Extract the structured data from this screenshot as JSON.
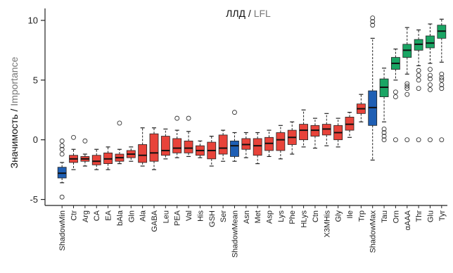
{
  "chart_data": {
    "type": "boxplot",
    "title_main": "ЛЛД",
    "title_sep": " / ",
    "title_alt": "LFL",
    "ylabel_main": "Значимость",
    "ylabel_sep": " / ",
    "ylabel_alt": "Importance",
    "ylim": [
      -5.5,
      11
    ],
    "yticks": [
      -5,
      0,
      5,
      10
    ],
    "grid": false,
    "colors": {
      "rejected": "#e8433a",
      "shadow": "#1f5fb4",
      "confirmed": "#1aa564",
      "tentative": "#1aa564",
      "title_alt": "#777777",
      "ylabel_alt": "#777777"
    },
    "boxes": [
      {
        "name": "ShadowMin",
        "group": "shadow",
        "min": -3.6,
        "q1": -3.2,
        "median": -2.8,
        "q3": -2.3,
        "max": -1.9,
        "outliers": [
          -0.1,
          -0.5,
          -0.8,
          -1.2,
          -4.8
        ]
      },
      {
        "name": "Ctr",
        "group": "rejected",
        "min": -2.5,
        "q1": -1.9,
        "median": -1.6,
        "q3": -1.3,
        "max": -0.8,
        "outliers": [
          0.2
        ]
      },
      {
        "name": "Arg",
        "group": "rejected",
        "min": -2.2,
        "q1": -1.8,
        "median": -1.6,
        "q3": -1.4,
        "max": -1.2,
        "outliers": [
          -0.1
        ]
      },
      {
        "name": "CA",
        "group": "rejected",
        "min": -2.5,
        "q1": -2.1,
        "median": -1.8,
        "q3": -1.3,
        "max": -0.8,
        "outliers": []
      },
      {
        "name": "EA",
        "group": "rejected",
        "min": -2.5,
        "q1": -2.0,
        "median": -1.6,
        "q3": -1.1,
        "max": -0.6,
        "outliers": []
      },
      {
        "name": "bAla",
        "group": "rejected",
        "min": -2.0,
        "q1": -1.8,
        "median": -1.5,
        "q3": -1.2,
        "max": -0.8,
        "outliers": [
          1.4
        ]
      },
      {
        "name": "Gln",
        "group": "rejected",
        "min": -1.8,
        "q1": -1.5,
        "median": -1.2,
        "q3": -0.9,
        "max": -0.6,
        "outliers": []
      },
      {
        "name": "Ala",
        "group": "rejected",
        "min": -2.2,
        "q1": -1.9,
        "median": -1.3,
        "q3": -0.4,
        "max": 1.0,
        "outliers": []
      },
      {
        "name": "GABA",
        "group": "rejected",
        "min": -2.5,
        "q1": -1.8,
        "median": -1.1,
        "q3": 0.5,
        "max": 1.0,
        "outliers": []
      },
      {
        "name": "Leu",
        "group": "rejected",
        "min": -1.6,
        "q1": -1.3,
        "median": -0.9,
        "q3": 0.3,
        "max": 0.9,
        "outliers": []
      },
      {
        "name": "PEA",
        "group": "rejected",
        "min": -1.5,
        "q1": -1.1,
        "median": -0.7,
        "q3": 0.1,
        "max": 0.8,
        "outliers": [
          1.8
        ]
      },
      {
        "name": "Val",
        "group": "rejected",
        "min": -1.4,
        "q1": -1.1,
        "median": -0.7,
        "q3": -0.1,
        "max": 0.7,
        "outliers": [
          1.8
        ]
      },
      {
        "name": "His",
        "group": "rejected",
        "min": -1.5,
        "q1": -1.3,
        "median": -0.9,
        "q3": -0.5,
        "max": -0.1,
        "outliers": []
      },
      {
        "name": "GSH",
        "group": "rejected",
        "min": -2.2,
        "q1": -1.6,
        "median": -0.9,
        "q3": -0.2,
        "max": 0.3,
        "outliers": []
      },
      {
        "name": "Ser",
        "group": "rejected",
        "min": -1.8,
        "q1": -1.2,
        "median": -0.7,
        "q3": 0.4,
        "max": 0.8,
        "outliers": []
      },
      {
        "name": "ShadowMean",
        "group": "shadow",
        "min": -1.8,
        "q1": -1.4,
        "median": -0.5,
        "q3": -0.1,
        "max": 0.6,
        "outliers": [
          2.3
        ]
      },
      {
        "name": "Asn",
        "group": "rejected",
        "min": -1.5,
        "q1": -0.8,
        "median": -0.4,
        "q3": 0.1,
        "max": 0.6,
        "outliers": []
      },
      {
        "name": "Met",
        "group": "rejected",
        "min": -2.0,
        "q1": -1.3,
        "median": -0.5,
        "q3": 0.1,
        "max": 0.6,
        "outliers": []
      },
      {
        "name": "Asp",
        "group": "rejected",
        "min": -1.4,
        "q1": -0.9,
        "median": -0.3,
        "q3": 0.2,
        "max": 0.8,
        "outliers": []
      },
      {
        "name": "Lys",
        "group": "rejected",
        "min": -1.6,
        "q1": -0.9,
        "median": 0.0,
        "q3": 0.6,
        "max": 1.2,
        "outliers": []
      },
      {
        "name": "Phe",
        "group": "rejected",
        "min": -1.2,
        "q1": -0.4,
        "median": 0.2,
        "q3": 0.8,
        "max": 1.5,
        "outliers": []
      },
      {
        "name": "HLys",
        "group": "rejected",
        "min": -0.6,
        "q1": 0.0,
        "median": 0.8,
        "q3": 1.3,
        "max": 2.5,
        "outliers": []
      },
      {
        "name": "Ctn",
        "group": "rejected",
        "min": -0.7,
        "q1": 0.3,
        "median": 0.8,
        "q3": 1.2,
        "max": 1.8,
        "outliers": []
      },
      {
        "name": "X3MHis",
        "group": "rejected",
        "min": -0.5,
        "q1": 0.4,
        "median": 0.9,
        "q3": 1.3,
        "max": 2.2,
        "outliers": []
      },
      {
        "name": "Gly",
        "group": "rejected",
        "min": -0.6,
        "q1": 0.0,
        "median": 0.6,
        "q3": 1.2,
        "max": 1.8,
        "outliers": []
      },
      {
        "name": "Ile",
        "group": "rejected",
        "min": 0.2,
        "q1": 0.8,
        "median": 1.3,
        "q3": 1.9,
        "max": 2.3,
        "outliers": []
      },
      {
        "name": "Trp",
        "group": "rejected",
        "min": 1.5,
        "q1": 2.2,
        "median": 2.6,
        "q3": 3.0,
        "max": 3.8,
        "outliers": []
      },
      {
        "name": "ShadowMax",
        "group": "shadow",
        "min": -1.7,
        "q1": 1.2,
        "median": 2.7,
        "q3": 4.1,
        "max": 8.5,
        "outliers": [
          9.6,
          9.9,
          10.2
        ]
      },
      {
        "name": "Tau",
        "group": "confirmed",
        "min": 1.5,
        "q1": 3.6,
        "median": 4.4,
        "q3": 5.1,
        "max": 6.0,
        "outliers": [
          0.3,
          0.6,
          0.9,
          0.0
        ]
      },
      {
        "name": "Orn",
        "group": "confirmed",
        "min": 5.0,
        "q1": 5.9,
        "median": 6.4,
        "q3": 6.9,
        "max": 7.6,
        "outliers": [
          3.6,
          4.0,
          0.0
        ]
      },
      {
        "name": "αAAA",
        "group": "confirmed",
        "min": 5.5,
        "q1": 6.9,
        "median": 7.5,
        "q3": 8.0,
        "max": 9.4,
        "outliers": [
          4.3,
          4.5,
          4.7,
          3.8,
          0.0
        ]
      },
      {
        "name": "Thr",
        "group": "confirmed",
        "min": 6.2,
        "q1": 7.5,
        "median": 8.0,
        "q3": 8.4,
        "max": 9.2,
        "outliers": [
          5.8,
          5.4,
          5.0,
          4.3,
          0.0
        ]
      },
      {
        "name": "Glu",
        "group": "confirmed",
        "min": 6.4,
        "q1": 7.7,
        "median": 8.1,
        "q3": 8.7,
        "max": 9.7,
        "outliers": [
          5.9,
          5.4,
          5.1,
          4.6,
          4.2,
          0.0
        ]
      },
      {
        "name": "Tyr",
        "group": "confirmed",
        "min": 6.5,
        "q1": 8.5,
        "median": 9.1,
        "q3": 9.6,
        "max": 10.1,
        "outliers": [
          5.5,
          5.2,
          5.0,
          4.6,
          4.3,
          0.0
        ]
      }
    ]
  }
}
